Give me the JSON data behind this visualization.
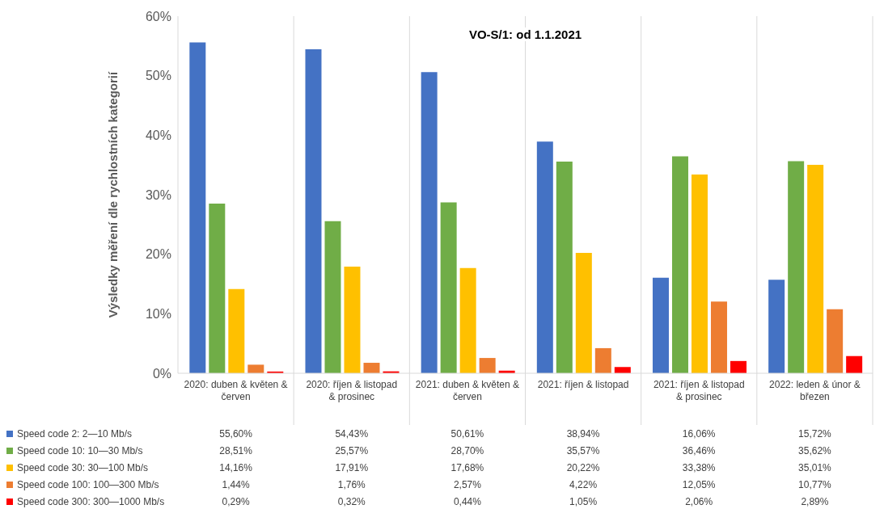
{
  "chart_data": {
    "type": "bar",
    "ylabel": "Výsledky měření dle rychlostních kategorií",
    "categories": [
      "2020: duben & květen & červen",
      "2020: říjen & listopad & prosinec",
      "2021: duben & květen & červen",
      "2021: říjen & listopad",
      "2021: říjen & listopad & prosinec",
      "2022: leden & únor & březen"
    ],
    "series": [
      {
        "name": "Speed code 2: 2—10 Mb/s",
        "color": "#4472c4",
        "values": [
          55.6,
          54.43,
          50.61,
          38.94,
          16.06,
          15.72
        ],
        "value_labels": [
          "55,60%",
          "54,43%",
          "50,61%",
          "38,94%",
          "16,06%",
          "15,72%"
        ]
      },
      {
        "name": "Speed code 10: 10—30 Mb/s",
        "color": "#70ad47",
        "values": [
          28.51,
          25.57,
          28.7,
          35.57,
          36.46,
          35.62
        ],
        "value_labels": [
          "28,51%",
          "25,57%",
          "28,70%",
          "35,57%",
          "36,46%",
          "35,62%"
        ]
      },
      {
        "name": "Speed code 30: 30—100 Mb/s",
        "color": "#ffc000",
        "values": [
          14.16,
          17.91,
          17.68,
          20.22,
          33.38,
          35.01
        ],
        "value_labels": [
          "14,16%",
          "17,91%",
          "17,68%",
          "20,22%",
          "33,38%",
          "35,01%"
        ]
      },
      {
        "name": "Speed code 100: 100—300 Mb/s",
        "color": "#ed7d31",
        "values": [
          1.44,
          1.76,
          2.57,
          4.22,
          12.05,
          10.77
        ],
        "value_labels": [
          "1,44%",
          "1,76%",
          "2,57%",
          "4,22%",
          "12,05%",
          "10,77%"
        ]
      },
      {
        "name": "Speed code 300: 300—1000 Mb/s",
        "color": "#ff0000",
        "values": [
          0.29,
          0.32,
          0.44,
          1.05,
          2.06,
          2.89
        ],
        "value_labels": [
          "0,29%",
          "0,32%",
          "0,44%",
          "1,05%",
          "2,06%",
          "2,89%"
        ]
      }
    ],
    "ylim": [
      0,
      60
    ],
    "yticks": [
      {
        "value": 0,
        "label": "0%"
      },
      {
        "value": 10,
        "label": "10%"
      },
      {
        "value": 20,
        "label": "20%"
      },
      {
        "value": 30,
        "label": "30%"
      },
      {
        "value": 40,
        "label": "40%"
      },
      {
        "value": 50,
        "label": "50%"
      },
      {
        "value": 60,
        "label": "60%"
      }
    ],
    "annotations": [
      "VO-S/1: od 1.1.2021"
    ],
    "grid": "x",
    "legend": "bottom left"
  }
}
